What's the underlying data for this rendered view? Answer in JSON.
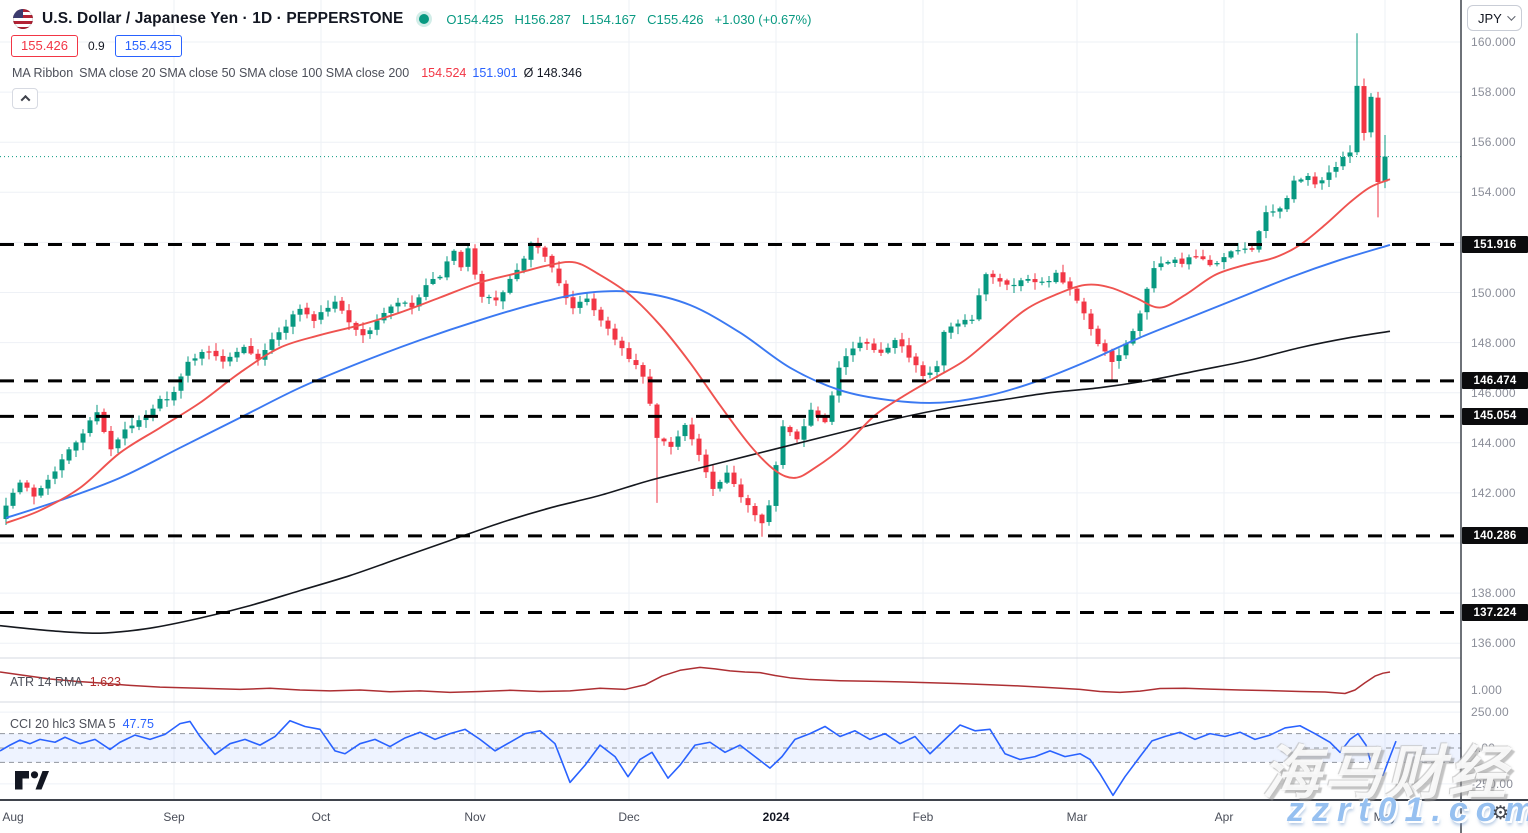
{
  "header": {
    "symbol_title": "U.S. Dollar / Japanese Yen · 1D · PEPPERSTONE",
    "ohlc": {
      "o": "O154.425",
      "h": "H156.287",
      "l": "L154.167",
      "c": "C155.426",
      "change": "+1.030 (+0.67%)"
    },
    "bid": "155.426",
    "spread": "0.9",
    "ask": "155.435"
  },
  "ma_ribbon": {
    "label": "MA Ribbon",
    "params": "SMA close 20 SMA close 50 SMA close 100 SMA close 200",
    "sma20_value": "154.524",
    "sma50_value": "151.901",
    "avg_value": "Ø 148.346"
  },
  "indicators": {
    "atr": {
      "label": "ATR 14 RMA",
      "value": "1.623"
    },
    "cci": {
      "label": "CCI 20 hlc3 SMA 5",
      "value": "47.75"
    }
  },
  "axis": {
    "currency": "JPY",
    "price_ticks": [
      {
        "label": "160.000",
        "price": 160
      },
      {
        "label": "158.000",
        "price": 158
      },
      {
        "label": "156.000",
        "price": 156
      },
      {
        "label": "154.000",
        "price": 154
      },
      {
        "label": "150.000",
        "price": 150
      },
      {
        "label": "148.000",
        "price": 148
      },
      {
        "label": "146.000",
        "price": 146
      },
      {
        "label": "144.000",
        "price": 144
      },
      {
        "label": "142.000",
        "price": 142
      },
      {
        "label": "138.000",
        "price": 138
      },
      {
        "label": "136.000",
        "price": 136
      }
    ],
    "atr_ticks": [
      {
        "label": "1.000",
        "value": 1.0
      }
    ],
    "cci_ticks": [
      {
        "label": "250.00",
        "value": 250
      },
      {
        "label": "0.00",
        "value": 0
      },
      {
        "label": "-250.00",
        "value": -250
      }
    ],
    "time_ticks": [
      {
        "label": "Aug",
        "day": 1
      },
      {
        "label": "Sep",
        "day": 24
      },
      {
        "label": "Oct",
        "day": 45
      },
      {
        "label": "Nov",
        "day": 67
      },
      {
        "label": "Dec",
        "day": 89
      },
      {
        "label": "2024",
        "day": 110,
        "year": true
      },
      {
        "label": "Feb",
        "day": 131
      },
      {
        "label": "Mar",
        "day": 153
      },
      {
        "label": "Apr",
        "day": 174
      },
      {
        "label": "May",
        "day": 197
      }
    ]
  },
  "watermark": {
    "cn_text": "海马财经",
    "domain_text": "zzrt01.com",
    "gear_icon": "⚙"
  },
  "colors": {
    "up": "#089981",
    "down": "#f23645",
    "sma20": "#ef5350",
    "sma50": "#3b79f2",
    "sma200": "#15181e",
    "atr_line": "#ad2f33",
    "cci_line": "#2962ff",
    "cci_band": "rgba(41,98,255,0.08)",
    "level": "#000000",
    "grid": "#eef1f6",
    "separator": "#d6d9e0",
    "dark_border": "#3f434c",
    "current_price": "#089981"
  },
  "chart_data": {
    "type": "candlestick",
    "symbol": "USDJPY",
    "timeframe": "1D",
    "broker": "PEPPERSTONE",
    "title": "U.S. Dollar / Japanese Yen",
    "current_price": 155.426,
    "ylim_price_pane": [
      135.2,
      161.6
    ],
    "levels": [
      151.916,
      146.474,
      145.054,
      140.286,
      137.224
    ],
    "close_anchors": [
      [
        0,
        141.6
      ],
      [
        2,
        142.4
      ],
      [
        4,
        141.9
      ],
      [
        6,
        142.6
      ],
      [
        8,
        143.3
      ],
      [
        11,
        144.4
      ],
      [
        13,
        145.3
      ],
      [
        15,
        143.7
      ],
      [
        17,
        144.5
      ],
      [
        20,
        145.0
      ],
      [
        22,
        145.7
      ],
      [
        24,
        146.0
      ],
      [
        26,
        147.2
      ],
      [
        28,
        147.7
      ],
      [
        31,
        147.3
      ],
      [
        34,
        147.9
      ],
      [
        36,
        147.4
      ],
      [
        39,
        148.4
      ],
      [
        42,
        149.4
      ],
      [
        44,
        148.9
      ],
      [
        45,
        149.2
      ],
      [
        47,
        149.6
      ],
      [
        49,
        148.9
      ],
      [
        51,
        148.2
      ],
      [
        53,
        148.9
      ],
      [
        56,
        149.6
      ],
      [
        58,
        149.4
      ],
      [
        60,
        150.2
      ],
      [
        62,
        150.7
      ],
      [
        64,
        151.6
      ],
      [
        65,
        150.9
      ],
      [
        66,
        151.7
      ],
      [
        68,
        149.9
      ],
      [
        70,
        149.6
      ],
      [
        72,
        150.5
      ],
      [
        74,
        151.3
      ],
      [
        75,
        151.9
      ],
      [
        77,
        151.5
      ],
      [
        79,
        150.4
      ],
      [
        81,
        149.3
      ],
      [
        83,
        149.8
      ],
      [
        85,
        148.9
      ],
      [
        87,
        148.2
      ],
      [
        89,
        147.3
      ],
      [
        91,
        146.7
      ],
      [
        93,
        144.2
      ],
      [
        95,
        143.8
      ],
      [
        97,
        144.8
      ],
      [
        99,
        143.5
      ],
      [
        101,
        142.1
      ],
      [
        103,
        142.7
      ],
      [
        105,
        141.9
      ],
      [
        107,
        141.2
      ],
      [
        108,
        140.9
      ],
      [
        109,
        141.5
      ],
      [
        111,
        144.6
      ],
      [
        113,
        144.2
      ],
      [
        115,
        145.3
      ],
      [
        117,
        144.9
      ],
      [
        119,
        147.1
      ],
      [
        121,
        147.8
      ],
      [
        123,
        148.0
      ],
      [
        125,
        147.6
      ],
      [
        127,
        148.2
      ],
      [
        129,
        147.4
      ],
      [
        131,
        146.6
      ],
      [
        133,
        147.0
      ],
      [
        134,
        148.4
      ],
      [
        136,
        148.7
      ],
      [
        138,
        148.9
      ],
      [
        140,
        150.8
      ],
      [
        142,
        150.5
      ],
      [
        144,
        150.3
      ],
      [
        146,
        150.6
      ],
      [
        148,
        150.4
      ],
      [
        150,
        150.7
      ],
      [
        152,
        150.1
      ],
      [
        154,
        149.1
      ],
      [
        156,
        147.9
      ],
      [
        158,
        147.2
      ],
      [
        160,
        147.9
      ],
      [
        162,
        149.2
      ],
      [
        164,
        150.9
      ],
      [
        166,
        151.3
      ],
      [
        168,
        151.2
      ],
      [
        170,
        151.4
      ],
      [
        172,
        151.1
      ],
      [
        174,
        151.4
      ],
      [
        176,
        151.7
      ],
      [
        178,
        151.8
      ],
      [
        180,
        153.1
      ],
      [
        182,
        153.3
      ],
      [
        184,
        154.4
      ],
      [
        186,
        154.6
      ],
      [
        187,
        154.3
      ],
      [
        189,
        154.8
      ],
      [
        191,
        155.3
      ],
      [
        192,
        155.7
      ],
      [
        193,
        158.3
      ],
      [
        194,
        156.4
      ],
      [
        195,
        157.8
      ],
      [
        196,
        154.5
      ],
      [
        197,
        155.426
      ]
    ],
    "special_candles": {
      "93": {
        "l": 141.6
      },
      "108": {
        "l": 140.25
      },
      "131": {
        "l": 146.45
      },
      "158": {
        "l": 146.48
      },
      "193": {
        "h": 160.35
      },
      "196": {
        "l": 153.0
      },
      "197": {
        "o": 154.425,
        "h": 156.287,
        "l": 154.167,
        "c": 155.426
      }
    },
    "sma20": [
      [
        6,
        140.8
      ],
      [
        40,
        141.3
      ],
      [
        80,
        142.2
      ],
      [
        120,
        143.6
      ],
      [
        160,
        144.6
      ],
      [
        200,
        145.6
      ],
      [
        240,
        146.8
      ],
      [
        280,
        147.8
      ],
      [
        320,
        148.3
      ],
      [
        360,
        148.7
      ],
      [
        400,
        149.2
      ],
      [
        440,
        149.8
      ],
      [
        480,
        150.4
      ],
      [
        520,
        150.8
      ],
      [
        550,
        151.1
      ],
      [
        575,
        151.2
      ],
      [
        600,
        150.7
      ],
      [
        630,
        149.9
      ],
      [
        660,
        148.7
      ],
      [
        690,
        147.2
      ],
      [
        720,
        145.5
      ],
      [
        750,
        143.9
      ],
      [
        775,
        142.9
      ],
      [
        795,
        142.6
      ],
      [
        815,
        143.0
      ],
      [
        845,
        143.9
      ],
      [
        875,
        145.1
      ],
      [
        905,
        145.9
      ],
      [
        935,
        146.6
      ],
      [
        965,
        147.3
      ],
      [
        995,
        148.3
      ],
      [
        1025,
        149.3
      ],
      [
        1055,
        149.9
      ],
      [
        1085,
        150.3
      ],
      [
        1110,
        150.2
      ],
      [
        1135,
        149.8
      ],
      [
        1160,
        149.4
      ],
      [
        1185,
        149.9
      ],
      [
        1215,
        150.7
      ],
      [
        1245,
        151.1
      ],
      [
        1275,
        151.4
      ],
      [
        1300,
        151.9
      ],
      [
        1325,
        152.7
      ],
      [
        1350,
        153.6
      ],
      [
        1370,
        154.2
      ],
      [
        1390,
        154.52
      ]
    ],
    "sma50": [
      [
        6,
        141.0
      ],
      [
        60,
        141.7
      ],
      [
        120,
        142.6
      ],
      [
        180,
        143.8
      ],
      [
        240,
        145.0
      ],
      [
        300,
        146.2
      ],
      [
        360,
        147.2
      ],
      [
        420,
        148.1
      ],
      [
        480,
        148.9
      ],
      [
        540,
        149.6
      ],
      [
        590,
        150.0
      ],
      [
        640,
        150.0
      ],
      [
        690,
        149.5
      ],
      [
        740,
        148.4
      ],
      [
        790,
        147.0
      ],
      [
        840,
        146.1
      ],
      [
        890,
        145.7
      ],
      [
        940,
        145.6
      ],
      [
        990,
        145.9
      ],
      [
        1040,
        146.5
      ],
      [
        1090,
        147.3
      ],
      [
        1140,
        148.2
      ],
      [
        1190,
        149.0
      ],
      [
        1240,
        149.8
      ],
      [
        1290,
        150.6
      ],
      [
        1340,
        151.3
      ],
      [
        1390,
        151.9
      ]
    ],
    "sma200": [
      [
        0,
        136.7
      ],
      [
        50,
        136.5
      ],
      [
        100,
        136.4
      ],
      [
        150,
        136.6
      ],
      [
        200,
        137.0
      ],
      [
        250,
        137.5
      ],
      [
        300,
        138.1
      ],
      [
        350,
        138.7
      ],
      [
        400,
        139.4
      ],
      [
        450,
        140.1
      ],
      [
        500,
        140.8
      ],
      [
        550,
        141.4
      ],
      [
        600,
        141.9
      ],
      [
        650,
        142.5
      ],
      [
        700,
        143.0
      ],
      [
        750,
        143.5
      ],
      [
        800,
        144.0
      ],
      [
        850,
        144.5
      ],
      [
        900,
        145.0
      ],
      [
        950,
        145.4
      ],
      [
        1000,
        145.7
      ],
      [
        1050,
        146.0
      ],
      [
        1100,
        146.2
      ],
      [
        1150,
        146.5
      ],
      [
        1200,
        146.9
      ],
      [
        1250,
        147.3
      ],
      [
        1300,
        147.8
      ],
      [
        1350,
        148.2
      ],
      [
        1390,
        148.45
      ]
    ],
    "atr_series": [
      [
        0,
        1.62
      ],
      [
        25,
        1.5
      ],
      [
        50,
        1.38
      ],
      [
        75,
        1.3
      ],
      [
        100,
        1.24
      ],
      [
        130,
        1.16
      ],
      [
        160,
        1.1
      ],
      [
        200,
        1.06
      ],
      [
        240,
        1.02
      ],
      [
        270,
        1.06
      ],
      [
        300,
        1.0
      ],
      [
        330,
        0.97
      ],
      [
        360,
        1.0
      ],
      [
        390,
        0.94
      ],
      [
        420,
        0.97
      ],
      [
        450,
        0.92
      ],
      [
        480,
        0.95
      ],
      [
        510,
        0.99
      ],
      [
        540,
        0.95
      ],
      [
        570,
        0.97
      ],
      [
        600,
        1.06
      ],
      [
        625,
        1.02
      ],
      [
        645,
        1.18
      ],
      [
        662,
        1.48
      ],
      [
        680,
        1.68
      ],
      [
        700,
        1.78
      ],
      [
        715,
        1.73
      ],
      [
        730,
        1.66
      ],
      [
        745,
        1.62
      ],
      [
        760,
        1.6
      ],
      [
        775,
        1.5
      ],
      [
        790,
        1.42
      ],
      [
        810,
        1.36
      ],
      [
        840,
        1.32
      ],
      [
        870,
        1.3
      ],
      [
        900,
        1.28
      ],
      [
        930,
        1.25
      ],
      [
        960,
        1.22
      ],
      [
        990,
        1.18
      ],
      [
        1020,
        1.14
      ],
      [
        1050,
        1.08
      ],
      [
        1080,
        1.02
      ],
      [
        1100,
        0.95
      ],
      [
        1120,
        0.92
      ],
      [
        1140,
        0.96
      ],
      [
        1160,
        1.05
      ],
      [
        1185,
        1.06
      ],
      [
        1210,
        1.03
      ],
      [
        1240,
        1.0
      ],
      [
        1270,
        0.98
      ],
      [
        1300,
        0.95
      ],
      [
        1325,
        0.93
      ],
      [
        1345,
        0.88
      ],
      [
        1355,
        1.0
      ],
      [
        1365,
        1.25
      ],
      [
        1375,
        1.48
      ],
      [
        1383,
        1.58
      ],
      [
        1390,
        1.62
      ]
    ],
    "cci_series": [
      [
        0,
        -20
      ],
      [
        10,
        20
      ],
      [
        20,
        55
      ],
      [
        30,
        30
      ],
      [
        40,
        60
      ],
      [
        55,
        40
      ],
      [
        65,
        75
      ],
      [
        80,
        30
      ],
      [
        95,
        60
      ],
      [
        110,
        -10
      ],
      [
        120,
        40
      ],
      [
        135,
        90
      ],
      [
        150,
        60
      ],
      [
        165,
        95
      ],
      [
        180,
        170
      ],
      [
        190,
        185
      ],
      [
        200,
        80
      ],
      [
        215,
        -45
      ],
      [
        230,
        30
      ],
      [
        245,
        60
      ],
      [
        260,
        20
      ],
      [
        275,
        80
      ],
      [
        290,
        190
      ],
      [
        305,
        150
      ],
      [
        320,
        130
      ],
      [
        335,
        -20
      ],
      [
        345,
        -40
      ],
      [
        360,
        30
      ],
      [
        375,
        60
      ],
      [
        390,
        10
      ],
      [
        405,
        70
      ],
      [
        420,
        110
      ],
      [
        435,
        60
      ],
      [
        450,
        100
      ],
      [
        465,
        130
      ],
      [
        480,
        60
      ],
      [
        495,
        -20
      ],
      [
        510,
        40
      ],
      [
        525,
        100
      ],
      [
        540,
        120
      ],
      [
        555,
        30
      ],
      [
        570,
        -240
      ],
      [
        585,
        -120
      ],
      [
        600,
        20
      ],
      [
        615,
        -60
      ],
      [
        628,
        -200
      ],
      [
        640,
        -80
      ],
      [
        652,
        -30
      ],
      [
        668,
        -210
      ],
      [
        680,
        -120
      ],
      [
        695,
        20
      ],
      [
        710,
        40
      ],
      [
        725,
        -30
      ],
      [
        740,
        20
      ],
      [
        755,
        -60
      ],
      [
        770,
        -140
      ],
      [
        782,
        -60
      ],
      [
        795,
        60
      ],
      [
        810,
        100
      ],
      [
        825,
        150
      ],
      [
        840,
        80
      ],
      [
        855,
        120
      ],
      [
        870,
        60
      ],
      [
        885,
        100
      ],
      [
        900,
        30
      ],
      [
        915,
        80
      ],
      [
        930,
        -40
      ],
      [
        945,
        60
      ],
      [
        960,
        160
      ],
      [
        975,
        120
      ],
      [
        990,
        130
      ],
      [
        1005,
        -40
      ],
      [
        1020,
        -80
      ],
      [
        1035,
        -60
      ],
      [
        1050,
        -20
      ],
      [
        1065,
        -60
      ],
      [
        1080,
        -40
      ],
      [
        1090,
        -80
      ],
      [
        1100,
        -180
      ],
      [
        1113,
        -330
      ],
      [
        1125,
        -200
      ],
      [
        1140,
        -60
      ],
      [
        1152,
        50
      ],
      [
        1165,
        80
      ],
      [
        1180,
        110
      ],
      [
        1195,
        60
      ],
      [
        1210,
        100
      ],
      [
        1225,
        80
      ],
      [
        1240,
        110
      ],
      [
        1255,
        60
      ],
      [
        1270,
        90
      ],
      [
        1285,
        140
      ],
      [
        1300,
        155
      ],
      [
        1315,
        100
      ],
      [
        1330,
        40
      ],
      [
        1340,
        -30
      ],
      [
        1350,
        60
      ],
      [
        1358,
        100
      ],
      [
        1366,
        20
      ],
      [
        1374,
        -180
      ],
      [
        1383,
        -190
      ],
      [
        1390,
        -60
      ],
      [
        1396,
        47.75
      ]
    ],
    "cci_band": [
      -100,
      100
    ],
    "legend_position": "top-left",
    "grid": true
  }
}
